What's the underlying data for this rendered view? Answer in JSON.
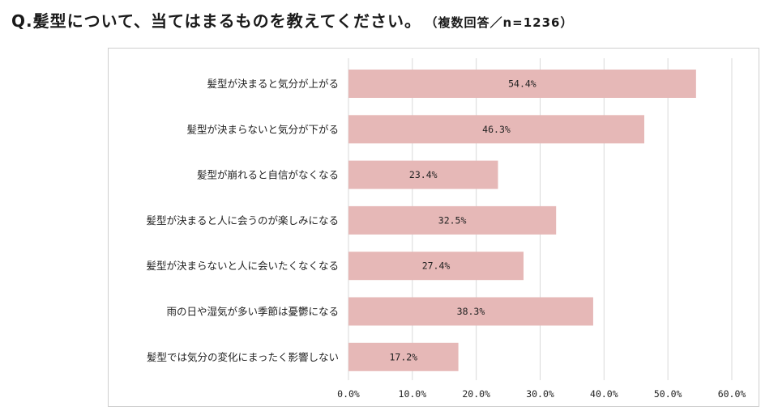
{
  "header": {
    "title": "Q.髪型について、当てはまるものを教えてください。",
    "subtitle": "（複数回答／n=1236）"
  },
  "chart_data": {
    "type": "bar",
    "orientation": "horizontal",
    "categories": [
      "髪型が決まると気分が上がる",
      "髪型が決まらないと気分が下がる",
      "髪型が崩れると自信がなくなる",
      "髪型が決まると人に会うのが楽しみになる",
      "髪型が決まらないと人に会いたくなくなる",
      "雨の日や湿気が多い季節は憂鬱になる",
      "髪型では気分の変化にまったく影響しない"
    ],
    "values": [
      54.4,
      46.3,
      23.4,
      32.5,
      27.4,
      38.3,
      17.2
    ],
    "data_labels": [
      "54.4%",
      "46.3%",
      "23.4%",
      "32.5%",
      "27.4%",
      "38.3%",
      "17.2%"
    ],
    "xlim": [
      0,
      60
    ],
    "xticks": [
      0,
      10,
      20,
      30,
      40,
      50,
      60
    ],
    "xtick_labels": [
      "0.0%",
      "10.0%",
      "20.0%",
      "30.0%",
      "40.0%",
      "50.0%",
      "60.0%"
    ],
    "bar_color": "#e6b8b7",
    "grid_color": "#d9d9d9",
    "grid": true
  }
}
